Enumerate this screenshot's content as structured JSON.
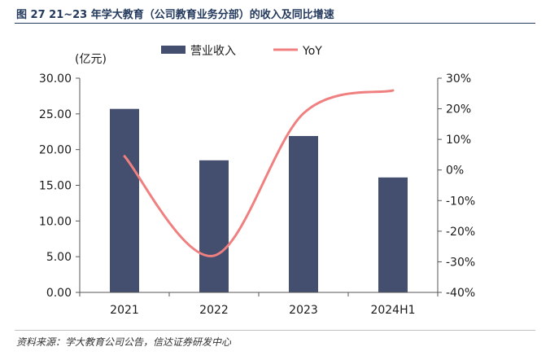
{
  "figure": {
    "title": "图 27   21~23 年学大教育（公司教育业务分部）的收入及同比增速",
    "source": "资料来源：学大教育公司公告，信达证券研发中心"
  },
  "chart_data": {
    "type": "bar",
    "categories": [
      "2021",
      "2022",
      "2023",
      "2024H1"
    ],
    "ylabel": "(亿元)",
    "ylim": [
      0,
      30
    ],
    "y_ticks": [
      "0.00",
      "5.00",
      "10.00",
      "15.00",
      "20.00",
      "25.00",
      "30.00"
    ],
    "y2lim": [
      -40,
      30
    ],
    "y2_ticks": [
      "-40%",
      "-30%",
      "-20%",
      "-10%",
      "0%",
      "10%",
      "20%",
      "30%"
    ],
    "legend_position": "top",
    "grid": false,
    "series": [
      {
        "name": "营业收入",
        "type": "bar",
        "axis": "left",
        "color": "#444e6e",
        "values": [
          25.7,
          18.5,
          21.9,
          16.1
        ]
      },
      {
        "name": "YoY",
        "type": "line",
        "axis": "right",
        "smooth": true,
        "color": "#f08080",
        "values": [
          4.5,
          -28.0,
          18.5,
          26.0
        ]
      }
    ]
  }
}
